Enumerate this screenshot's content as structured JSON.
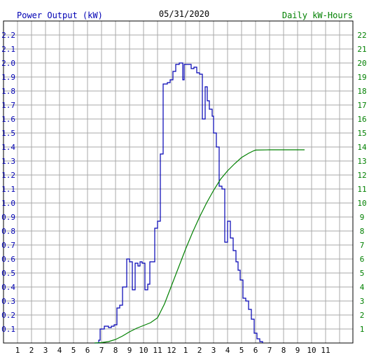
{
  "chart_data": {
    "type": "line",
    "title": "05/31/2020",
    "ylabel_left": "Power Output (kW)",
    "ylabel_right": "Daily kW-Hours",
    "x_tick_labels": [
      "1",
      "2",
      "3",
      "4",
      "5",
      "6",
      "7",
      "8",
      "9",
      "10",
      "11",
      "12",
      "1",
      "2",
      "3",
      "4",
      "5",
      "6",
      "7",
      "8",
      "9",
      "10",
      "11"
    ],
    "left_ylim": [
      0,
      2.3
    ],
    "left_tick_labels": [
      "0.1",
      "0.2",
      "0.3",
      "0.4",
      "0.5",
      "0.6",
      "0.7",
      "0.8",
      "0.9",
      "1.0",
      "1.1",
      "1.2",
      "1.3",
      "1.4",
      "1.5",
      "1.6",
      "1.7",
      "1.8",
      "1.9",
      "2.0",
      "2.1",
      "2.2"
    ],
    "right_ylim": [
      0,
      23
    ],
    "right_tick_labels": [
      "1",
      "2",
      "3",
      "4",
      "5",
      "6",
      "7",
      "8",
      "9",
      "10",
      "11",
      "12",
      "13",
      "14",
      "15",
      "16",
      "17",
      "18",
      "19",
      "20",
      "21",
      "22"
    ],
    "x_unit": "hours since midnight",
    "grid": true,
    "colors": {
      "power": "#0000b4",
      "energy": "#008000",
      "grid": "#a8a8a8",
      "title": "#000000"
    },
    "series": [
      {
        "name": "Power Output (kW)",
        "axis": "left",
        "step": true,
        "points": [
          [
            6.5,
            0
          ],
          [
            6.8,
            0.02
          ],
          [
            6.9,
            0.1
          ],
          [
            7.2,
            0.12
          ],
          [
            7.5,
            0.11
          ],
          [
            7.7,
            0.12
          ],
          [
            7.9,
            0.13
          ],
          [
            8.1,
            0.25
          ],
          [
            8.3,
            0.27
          ],
          [
            8.5,
            0.4
          ],
          [
            8.8,
            0.6
          ],
          [
            9.0,
            0.58
          ],
          [
            9.2,
            0.38
          ],
          [
            9.4,
            0.57
          ],
          [
            9.6,
            0.55
          ],
          [
            9.75,
            0.58
          ],
          [
            9.9,
            0.57
          ],
          [
            10.1,
            0.38
          ],
          [
            10.3,
            0.42
          ],
          [
            10.45,
            0.58
          ],
          [
            10.6,
            0.58
          ],
          [
            10.8,
            0.82
          ],
          [
            11.0,
            0.87
          ],
          [
            11.2,
            1.35
          ],
          [
            11.4,
            1.85
          ],
          [
            11.7,
            1.86
          ],
          [
            11.9,
            1.88
          ],
          [
            12.1,
            1.94
          ],
          [
            12.3,
            1.99
          ],
          [
            12.55,
            2.0
          ],
          [
            12.8,
            1.88
          ],
          [
            12.9,
            1.99
          ],
          [
            13.2,
            1.99
          ],
          [
            13.4,
            1.96
          ],
          [
            13.6,
            1.97
          ],
          [
            13.8,
            1.93
          ],
          [
            14.0,
            1.92
          ],
          [
            14.2,
            1.6
          ],
          [
            14.4,
            1.83
          ],
          [
            14.55,
            1.73
          ],
          [
            14.7,
            1.67
          ],
          [
            14.9,
            1.62
          ],
          [
            15.0,
            1.5
          ],
          [
            15.2,
            1.4
          ],
          [
            15.4,
            1.12
          ],
          [
            15.6,
            1.1
          ],
          [
            15.8,
            0.72
          ],
          [
            16.0,
            0.87
          ],
          [
            16.2,
            0.75
          ],
          [
            16.4,
            0.66
          ],
          [
            16.6,
            0.58
          ],
          [
            16.75,
            0.52
          ],
          [
            16.9,
            0.45
          ],
          [
            17.1,
            0.32
          ],
          [
            17.3,
            0.3
          ],
          [
            17.5,
            0.24
          ],
          [
            17.7,
            0.17
          ],
          [
            17.9,
            0.07
          ],
          [
            18.1,
            0.03
          ],
          [
            18.3,
            0.01
          ],
          [
            18.5,
            0
          ]
        ]
      },
      {
        "name": "Daily kW-Hours",
        "axis": "right",
        "step": false,
        "points": [
          [
            6.5,
            0
          ],
          [
            7.0,
            0.03
          ],
          [
            7.5,
            0.1
          ],
          [
            8.0,
            0.25
          ],
          [
            8.5,
            0.5
          ],
          [
            9.0,
            0.8
          ],
          [
            9.5,
            1.05
          ],
          [
            10.0,
            1.25
          ],
          [
            10.5,
            1.45
          ],
          [
            11.0,
            1.8
          ],
          [
            11.5,
            2.8
          ],
          [
            12.0,
            4.1
          ],
          [
            12.5,
            5.4
          ],
          [
            13.0,
            6.7
          ],
          [
            13.5,
            7.9
          ],
          [
            14.0,
            9.0
          ],
          [
            14.5,
            10.0
          ],
          [
            15.0,
            10.9
          ],
          [
            15.5,
            11.7
          ],
          [
            16.0,
            12.3
          ],
          [
            16.5,
            12.8
          ],
          [
            17.0,
            13.25
          ],
          [
            17.5,
            13.55
          ],
          [
            17.8,
            13.7
          ],
          [
            18.0,
            13.78
          ],
          [
            19.0,
            13.8
          ],
          [
            21.5,
            13.8
          ]
        ]
      }
    ]
  }
}
